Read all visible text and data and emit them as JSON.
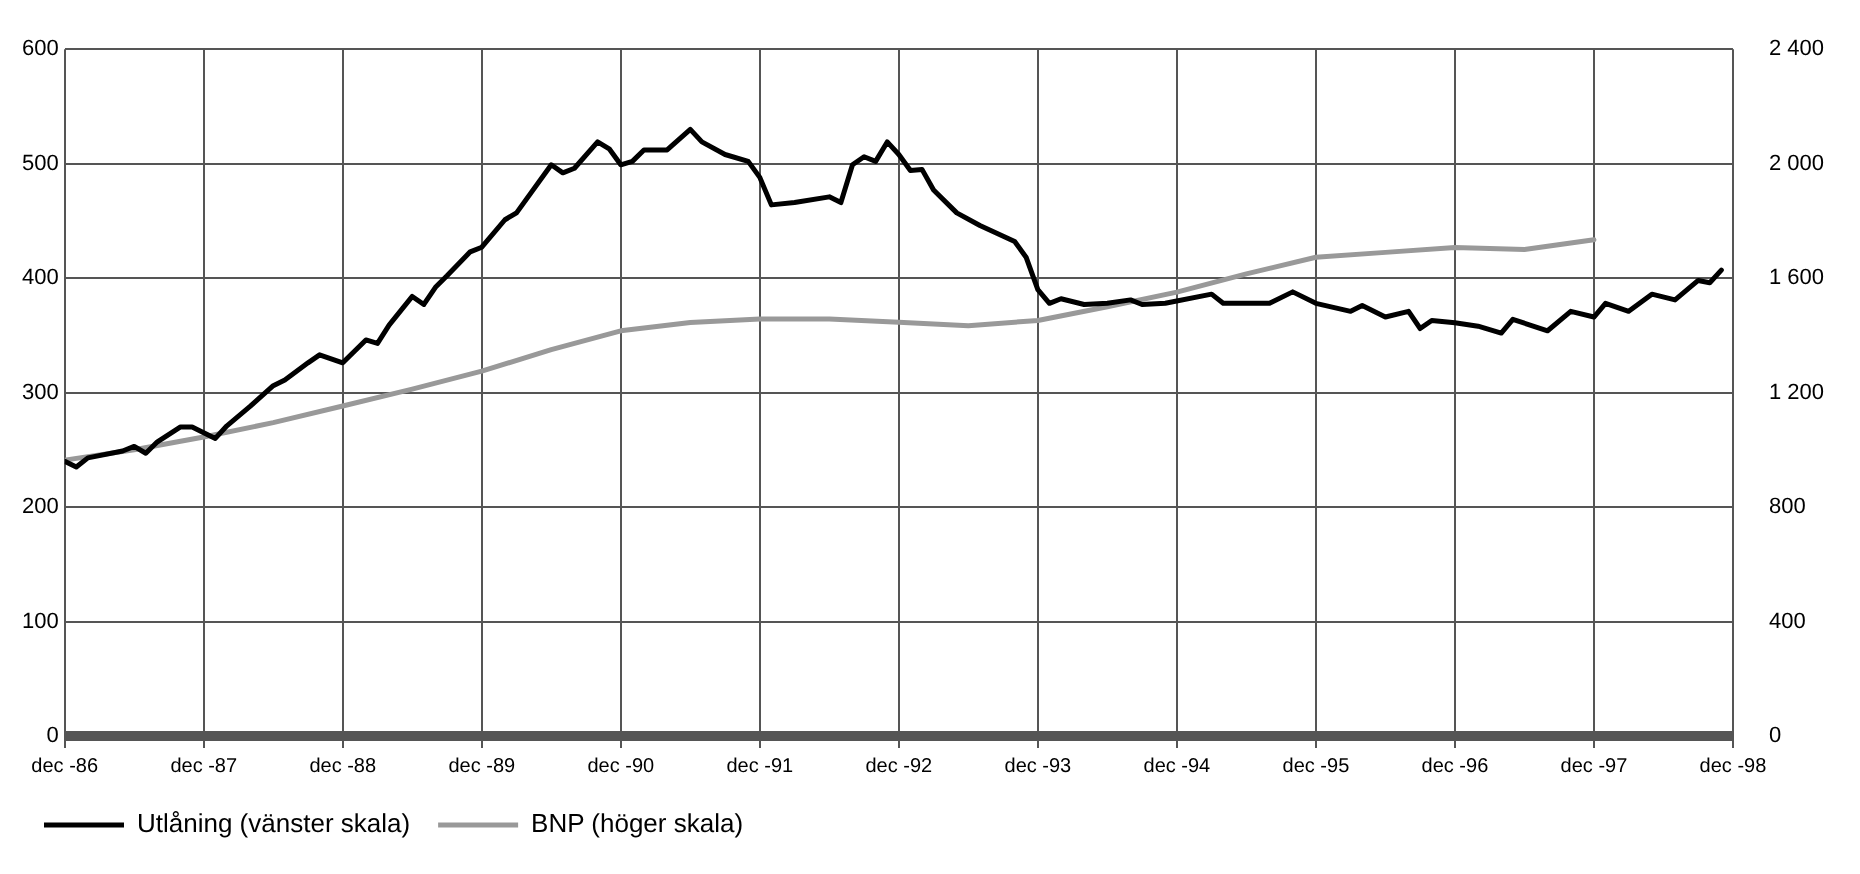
{
  "chart_data": {
    "type": "line",
    "xlim": [
      "1986-12",
      "1998-12"
    ],
    "xticks": [
      {
        "value": "1986-12",
        "label": "dec -86"
      },
      {
        "value": "1987-12",
        "label": "dec -87"
      },
      {
        "value": "1988-12",
        "label": "dec -88"
      },
      {
        "value": "1989-12",
        "label": "dec -89"
      },
      {
        "value": "1990-12",
        "label": "dec -90"
      },
      {
        "value": "1991-12",
        "label": "dec -91"
      },
      {
        "value": "1992-12",
        "label": "dec -92"
      },
      {
        "value": "1993-12",
        "label": "dec -93"
      },
      {
        "value": "1994-12",
        "label": "dec -94"
      },
      {
        "value": "1995-12",
        "label": "dec -95"
      },
      {
        "value": "1996-12",
        "label": "dec -96"
      },
      {
        "value": "1997-12",
        "label": "dec -97"
      },
      {
        "value": "1998-12",
        "label": "dec -98"
      }
    ],
    "ylim": [
      0,
      600
    ],
    "yticks": [
      0,
      100,
      200,
      300,
      400,
      500,
      600
    ],
    "y2lim": [
      0,
      2400
    ],
    "y2ticks": [
      0,
      400,
      800,
      {
        "value": 1200,
        "label": "1 200"
      },
      {
        "value": 1600,
        "label": "1 600"
      },
      {
        "value": 2000,
        "label": "2 000"
      },
      {
        "value": 2400,
        "label": "2 400"
      }
    ],
    "grid": true,
    "legend": "bottom",
    "marker": "none",
    "line_style": "solid",
    "series": [
      {
        "name": "Utlåning (vänster skala)",
        "color": "#000000",
        "x": [
          "1986-12",
          "1987-01",
          "1987-02",
          "1987-05",
          "1987-06",
          "1987-07",
          "1987-08",
          "1987-10",
          "1987-11",
          "1988-01",
          "1988-02",
          "1988-04",
          "1988-06",
          "1988-07",
          "1988-09",
          "1988-10",
          "1988-12",
          "1989-02",
          "1989-03",
          "1989-04",
          "1989-06",
          "1989-07",
          "1989-08",
          "1989-09",
          "1989-11",
          "1989-12",
          "1990-02",
          "1990-03",
          "1990-06",
          "1990-07",
          "1990-08",
          "1990-10",
          "1990-11",
          "1990-12",
          "1991-01",
          "1991-02",
          "1991-04",
          "1991-06",
          "1991-07",
          "1991-09",
          "1991-11",
          "1991-12",
          "1992-01",
          "1992-03",
          "1992-06",
          "1992-07",
          "1992-08",
          "1992-09",
          "1992-10",
          "1992-11",
          "1992-12",
          "1993-01",
          "1993-02",
          "1993-03",
          "1993-05",
          "1993-07",
          "1993-10",
          "1993-11",
          "1993-12",
          "1994-01",
          "1994-02",
          "1994-04",
          "1994-06",
          "1994-08",
          "1994-09",
          "1994-11",
          "1995-03",
          "1995-04",
          "1995-08",
          "1995-10",
          "1995-12",
          "1996-03",
          "1996-04",
          "1996-06",
          "1996-08",
          "1996-09",
          "1996-10",
          "1996-12",
          "1997-02",
          "1997-04",
          "1997-05",
          "1997-08",
          "1997-10",
          "1997-12",
          "1998-01",
          "1998-03",
          "1998-05",
          "1998-07",
          "1998-09",
          "1998-10",
          "1998-11"
        ],
        "values": [
          240,
          235,
          243,
          249,
          253,
          247,
          257,
          270,
          270,
          260,
          271,
          288,
          306,
          311,
          326,
          333,
          326,
          346,
          343,
          359,
          384,
          377,
          392,
          402,
          423,
          427,
          451,
          457,
          499,
          492,
          496,
          519,
          513,
          499,
          502,
          512,
          512,
          530,
          519,
          508,
          502,
          488,
          464,
          466,
          471,
          466,
          499,
          506,
          502,
          519,
          508,
          494,
          495,
          477,
          457,
          446,
          432,
          418,
          390,
          378,
          382,
          377,
          378,
          381,
          377,
          378,
          386,
          378,
          378,
          388,
          378,
          371,
          376,
          366,
          371,
          356,
          363,
          361,
          358,
          352,
          364,
          354,
          371,
          366,
          378,
          371,
          386,
          381,
          398,
          396,
          407
        ]
      },
      {
        "name": "BNP (höger skala)",
        "color": "#999999",
        "axis": "y2",
        "x": [
          "1986-12",
          "1987-06",
          "1987-12",
          "1988-06",
          "1988-12",
          "1989-06",
          "1989-12",
          "1990-06",
          "1990-12",
          "1991-06",
          "1991-12",
          "1992-06",
          "1992-12",
          "1993-06",
          "1993-12",
          "1994-06",
          "1994-12",
          "1995-06",
          "1995-12",
          "1996-06",
          "1996-12",
          "1997-06",
          "1997-12"
        ],
        "values": [
          964,
          1000,
          1045,
          1095,
          1153,
          1212,
          1275,
          1350,
          1416,
          1445,
          1457,
          1457,
          1446,
          1434,
          1452,
          1500,
          1551,
          1615,
          1673,
          1690,
          1707,
          1700,
          1734
        ]
      }
    ]
  }
}
